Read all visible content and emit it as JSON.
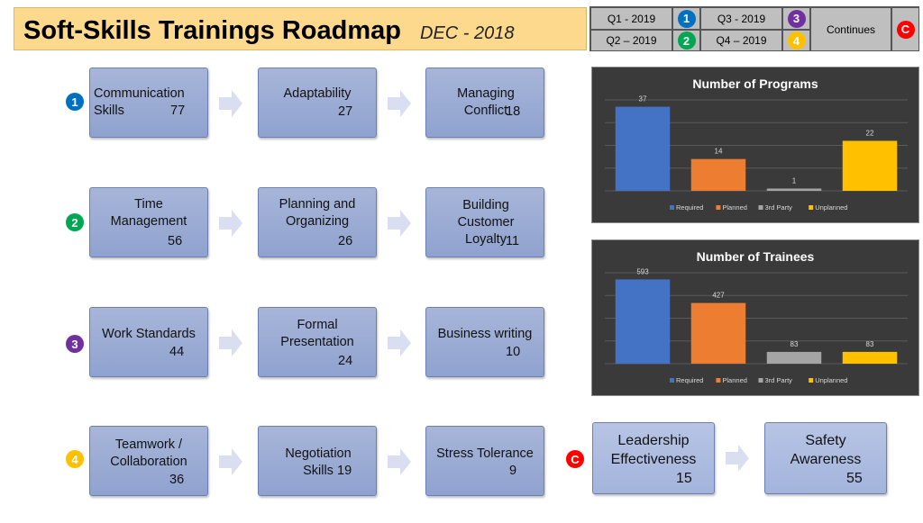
{
  "header": {
    "title": "Soft-Skills Trainings Roadmap",
    "date": "DEC - 2018"
  },
  "legend": {
    "q1": {
      "label": "Q1 - 2019",
      "badge": "1"
    },
    "q2": {
      "label": "Q2 – 2019",
      "badge": "2"
    },
    "q3": {
      "label": "Q3 - 2019",
      "badge": "3"
    },
    "q4": {
      "label": "Q4 – 2019",
      "badge": "4"
    },
    "cont": {
      "label": "Continues",
      "badge": "C"
    }
  },
  "rows": {
    "r1": {
      "badge": "1",
      "nodes": [
        {
          "label": "Communication\nSkills",
          "count": "77"
        },
        {
          "label": "Adaptability",
          "count": "27"
        },
        {
          "label": "Managing\nConflict",
          "count": "18"
        }
      ]
    },
    "r2": {
      "badge": "2",
      "nodes": [
        {
          "label": "Time\nManagement",
          "count": "56"
        },
        {
          "label": "Planning and\nOrganizing",
          "count": "26"
        },
        {
          "label": "Building\nCustomer\nLoyalty",
          "count": "11"
        }
      ]
    },
    "r3": {
      "badge": "3",
      "nodes": [
        {
          "label": "Work Standards",
          "count": "44"
        },
        {
          "label": "Formal\nPresentation",
          "count": "24"
        },
        {
          "label": "Business writing",
          "count": "10"
        }
      ]
    },
    "r4": {
      "badge": "4",
      "nodes": [
        {
          "label": "Teamwork /\nCollaboration",
          "count": "36"
        },
        {
          "label": "Negotiation\nSkills",
          "count": "19"
        },
        {
          "label": "Stress Tolerance",
          "count": "9"
        }
      ]
    },
    "cont": {
      "badge": "C",
      "nodes": [
        {
          "label": "Leadership\nEffectiveness",
          "count": "15"
        },
        {
          "label": "Safety\nAwareness",
          "count": "55"
        }
      ]
    }
  },
  "colors": {
    "q1": "#0070c0",
    "q2": "#00a651",
    "q3": "#7030a0",
    "q4": "#ffc000",
    "cont": "#ff0000",
    "required": "#4472c4",
    "planned": "#ed7d31",
    "third_party": "#a5a5a5",
    "unplanned": "#ffc000"
  },
  "chart_data": [
    {
      "type": "bar",
      "title": "Number of Programs",
      "categories": [
        "Required",
        "Planned",
        "3rd Party",
        "Unplanned"
      ],
      "values": [
        37,
        14,
        1,
        22
      ],
      "legend": [
        "Required",
        "Planned",
        "3rd Party",
        "Unplanned"
      ],
      "legend_position": "bottom",
      "ylim": [
        0,
        40
      ],
      "grid": true
    },
    {
      "type": "bar",
      "title": "Number of Trainees",
      "categories": [
        "Required",
        "Planned",
        "3rd Party",
        "Unplanned"
      ],
      "values": [
        593,
        427,
        83,
        83
      ],
      "legend": [
        "Required",
        "Planned",
        "3rd Party",
        "Unplanned"
      ],
      "legend_position": "bottom",
      "ylim": [
        0,
        640
      ],
      "grid": true
    }
  ]
}
